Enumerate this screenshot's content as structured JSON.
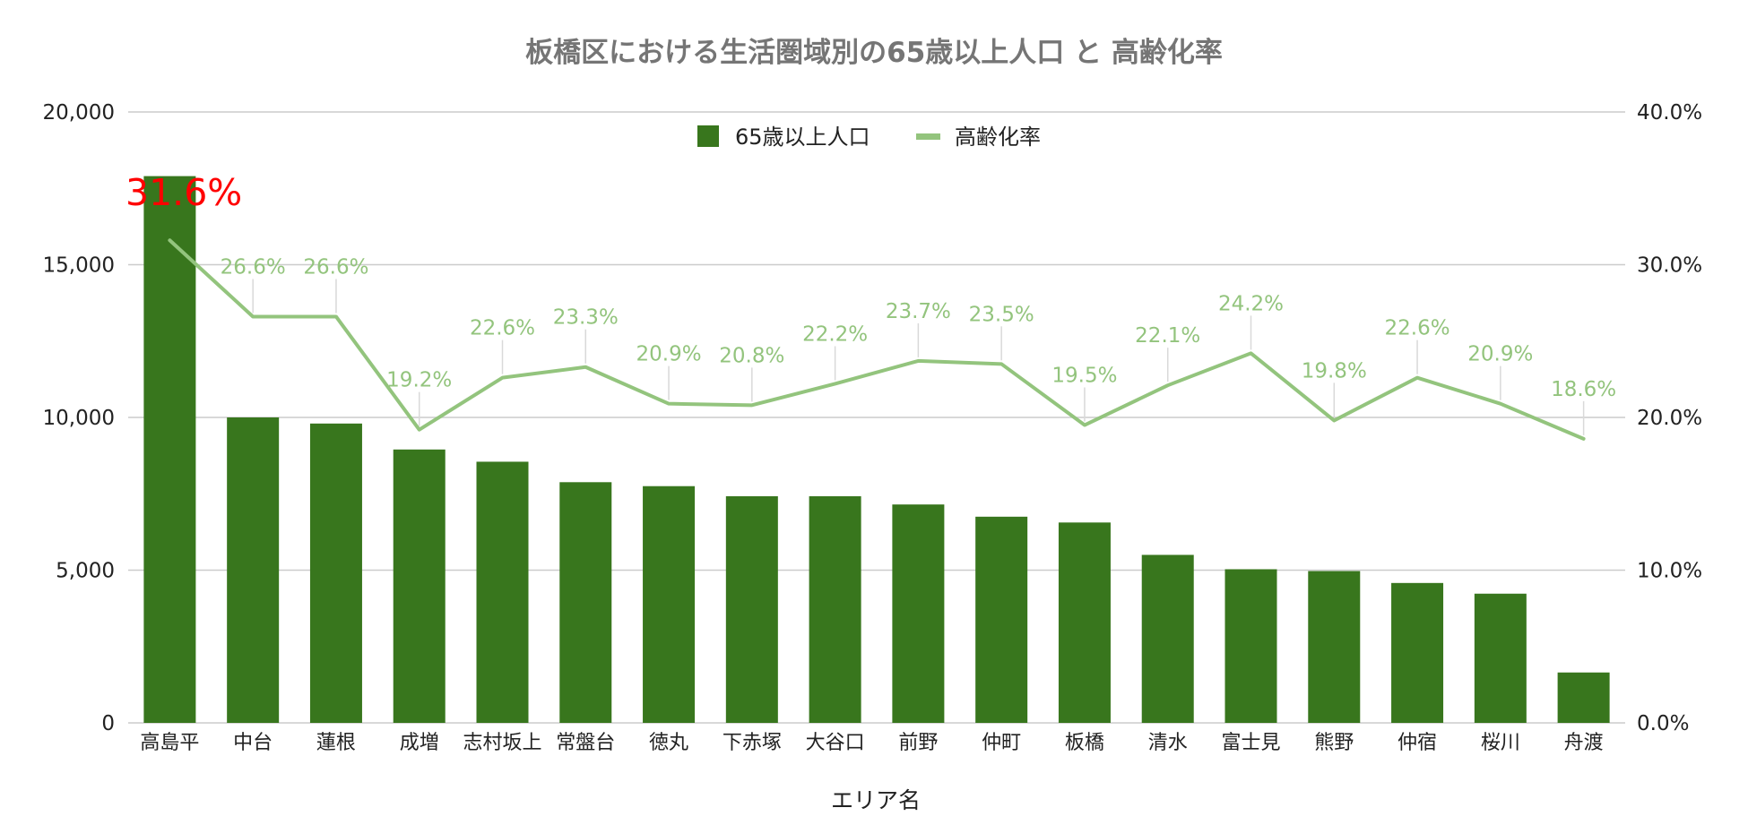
{
  "chart_data": {
    "type": "bar",
    "title": "板橋区における生活圏域別の65歳以上人口 と 高齢化率",
    "xlabel": "エリア名",
    "ylabel": "",
    "ylabel_right": "",
    "categories": [
      "高島平",
      "中台",
      "蓮根",
      "成増",
      "志村坂上",
      "常盤台",
      "徳丸",
      "下赤塚",
      "大谷口",
      "前野",
      "仲町",
      "板橋",
      "清水",
      "富士見",
      "熊野",
      "仲宿",
      "桜川",
      "舟渡"
    ],
    "series": [
      {
        "name": "65歳以上人口",
        "type": "bar",
        "axis": "left",
        "color": "#38761d",
        "values": [
          17900,
          10000,
          9800,
          8950,
          8550,
          7880,
          7750,
          7420,
          7420,
          7150,
          6750,
          6560,
          5500,
          5030,
          4970,
          4580,
          4230,
          1650
        ]
      },
      {
        "name": "高齢化率",
        "type": "line",
        "axis": "right",
        "color": "#93c47d",
        "values": [
          31.6,
          26.6,
          26.6,
          19.2,
          22.6,
          23.3,
          20.9,
          20.8,
          22.2,
          23.7,
          23.5,
          19.5,
          22.1,
          24.2,
          19.8,
          22.6,
          20.9,
          18.6
        ],
        "labels": [
          "31.6%",
          "26.6%",
          "26.6%",
          "19.2%",
          "22.6%",
          "23.3%",
          "20.9%",
          "20.8%",
          "22.2%",
          "23.7%",
          "23.5%",
          "19.5%",
          "22.1%",
          "24.2%",
          "19.8%",
          "22.6%",
          "20.9%",
          "18.6%"
        ],
        "highlight_color": "#ff0000"
      }
    ],
    "ylim": [
      0,
      20000
    ],
    "ylim_right": [
      0,
      40
    ],
    "y_ticks": [
      "0",
      "5,000",
      "10,000",
      "15,000",
      "20,000"
    ],
    "y_ticks_right": [
      "0.0%",
      "10.0%",
      "20.0%",
      "30.0%",
      "40.0%"
    ],
    "grid": true,
    "legend_position": "top-center"
  }
}
